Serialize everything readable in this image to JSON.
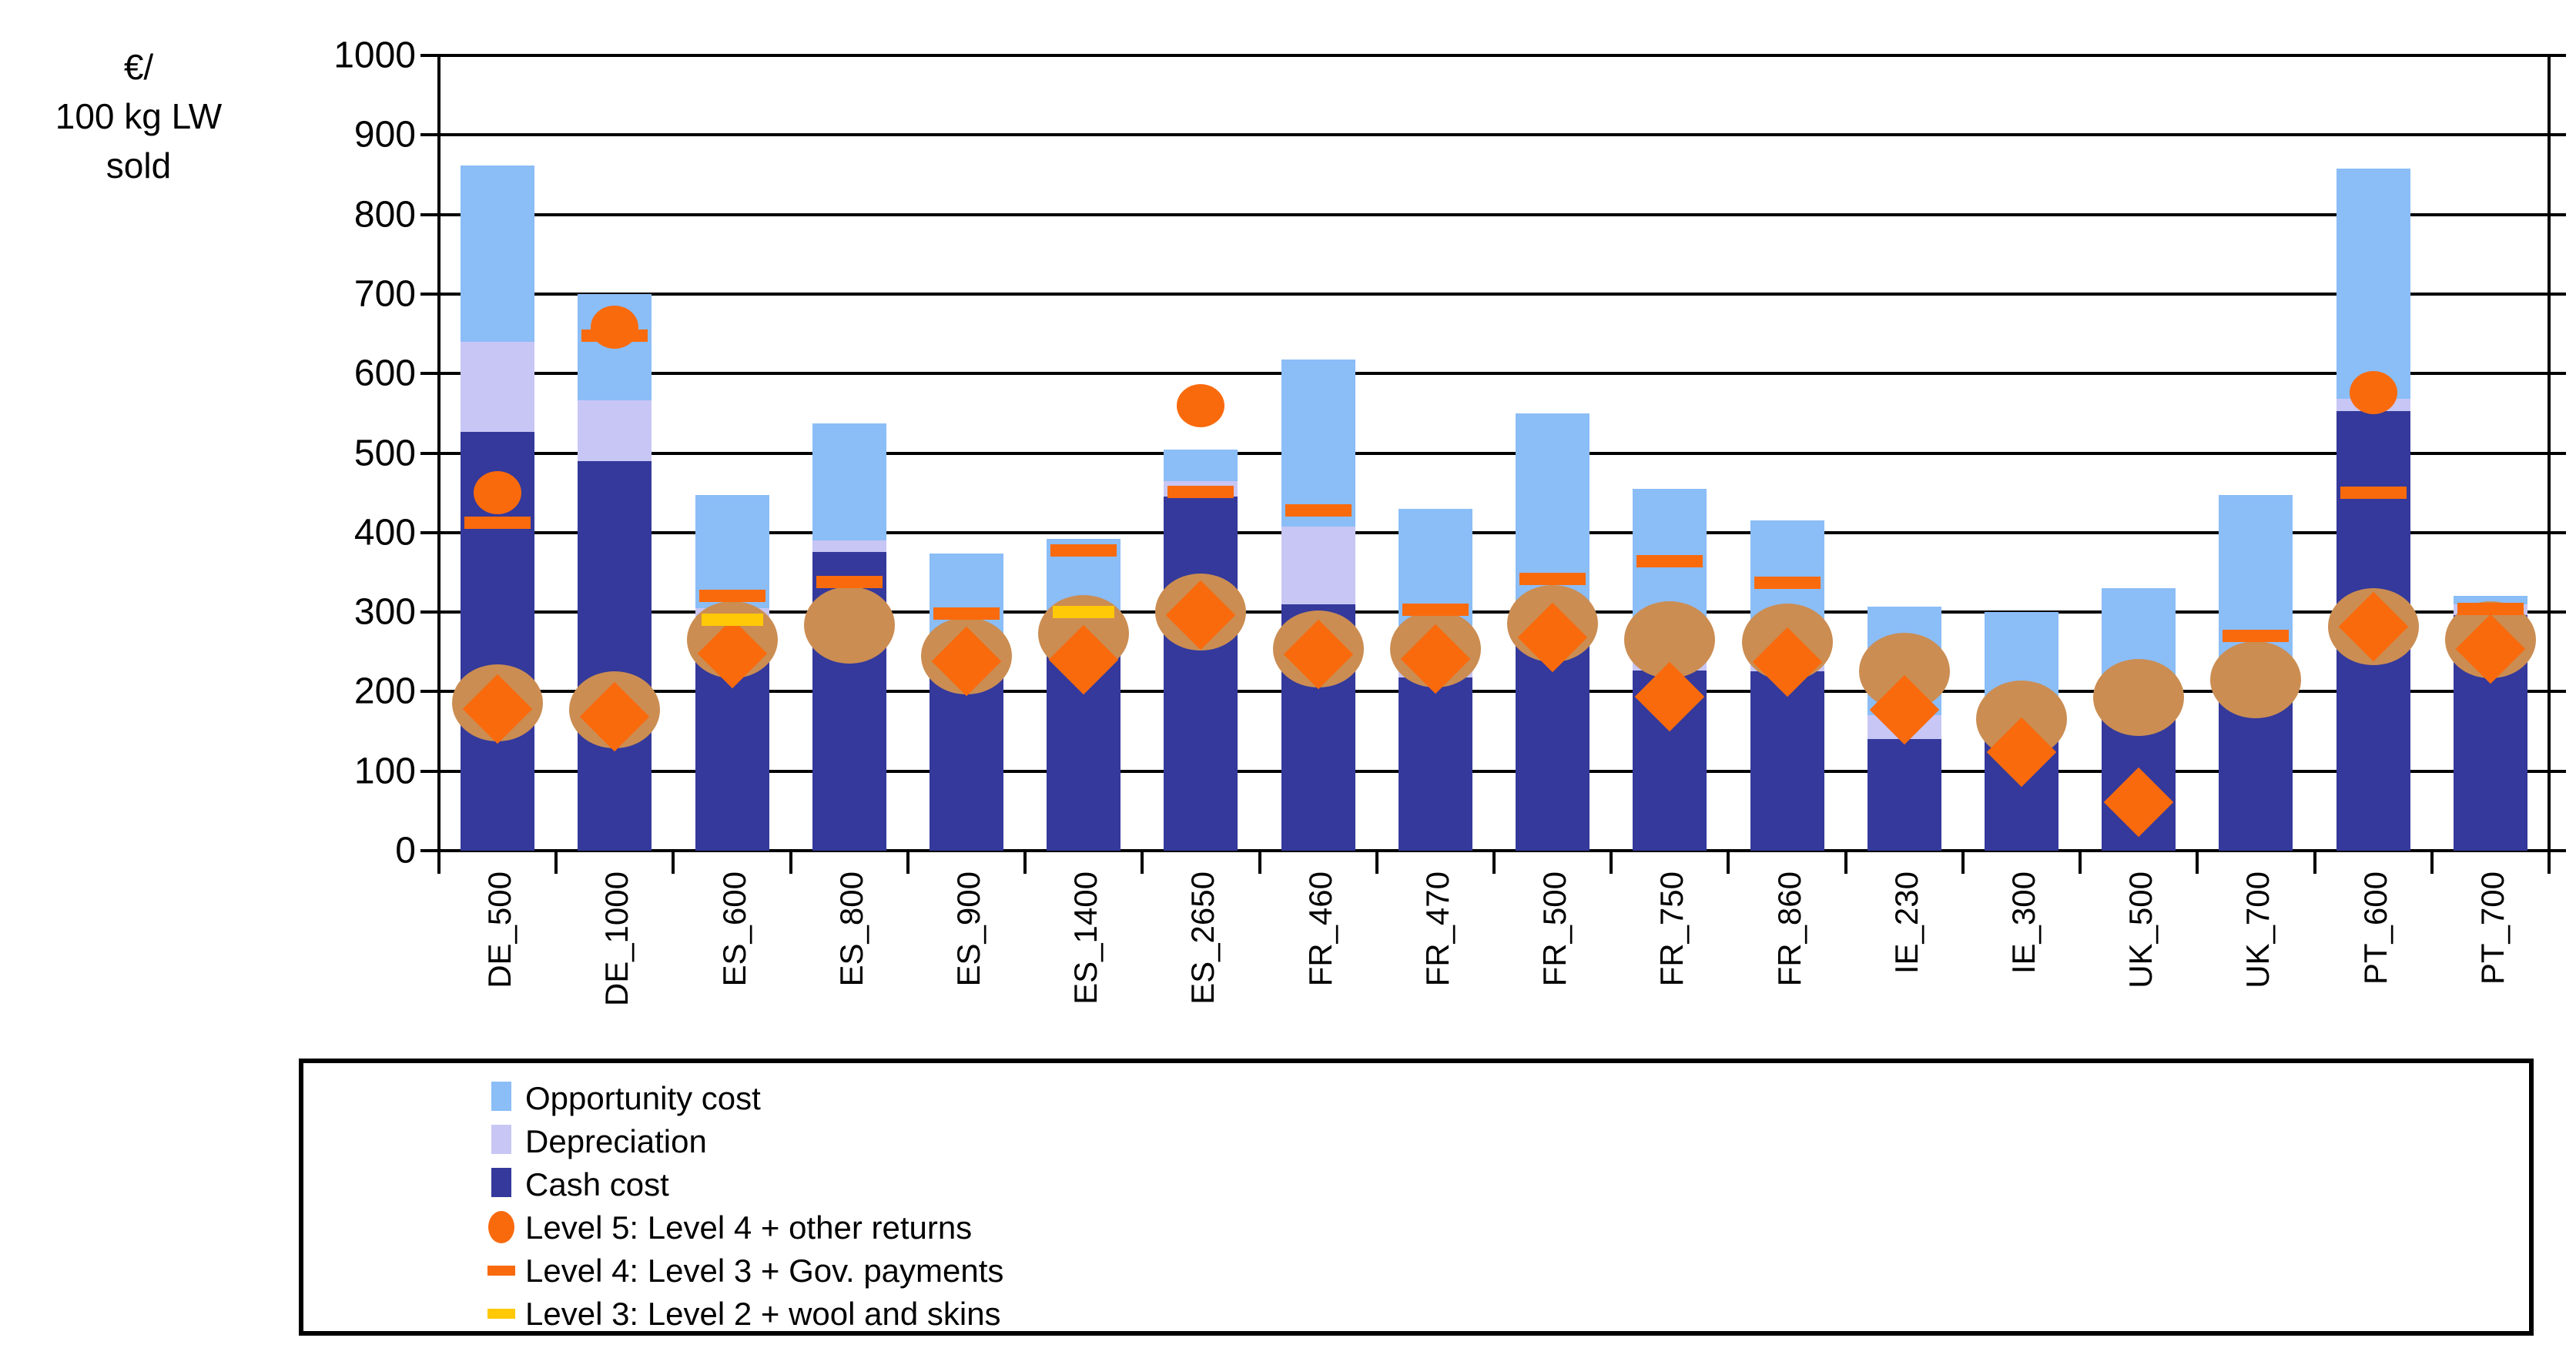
{
  "colors": {
    "opportunity": "#8BBDF7",
    "depreciation": "#C8C6F5",
    "cash": "#34399B",
    "marker_orange": "#F96A0D",
    "marker_yellow": "#FFC907",
    "marker_tan": "#CB8D52",
    "axis": "#000000",
    "background": "#FFFFFF"
  },
  "legend": {
    "items": [
      {
        "label": "Opportunity cost",
        "swatch": "bar",
        "color": "opportunity"
      },
      {
        "label": "Depreciation",
        "swatch": "bar",
        "color": "depreciation"
      },
      {
        "label": "Cash cost",
        "swatch": "bar",
        "color": "cash"
      },
      {
        "label": "Level 5: Level 4 + other returns",
        "swatch": "circle",
        "color": "marker_orange"
      },
      {
        "label": "Level 4: Level 3 + Gov. payments",
        "swatch": "dash",
        "color": "marker_orange"
      },
      {
        "label": "Level 3: Level 2 + wool and skins",
        "swatch": "dash",
        "color": "marker_yellow"
      }
    ]
  },
  "chart_data": {
    "type": "bar",
    "stacked": true,
    "title": "",
    "xlabel": "",
    "ylabel_lines": [
      "€/",
      "100 kg LW",
      "sold"
    ],
    "ylim": [
      0,
      1000
    ],
    "y_ticks": [
      0,
      100,
      200,
      300,
      400,
      500,
      600,
      700,
      800,
      900,
      1000
    ],
    "grid": true,
    "legend_position": "bottom",
    "categories": [
      "DE_500",
      "DE_1000",
      "ES_600",
      "ES_800",
      "ES_900",
      "ES_1400",
      "ES_2650",
      "FR_460",
      "FR_470",
      "FR_500",
      "FR_750",
      "FR_860",
      "IE_230",
      "IE_300",
      "UK_500",
      "UK_700",
      "PT_600",
      "PT_700"
    ],
    "series": [
      {
        "name": "Cash cost",
        "type": "bar-segment",
        "color": "cash",
        "values": [
          527,
          490,
          287,
          376,
          255,
          275,
          445,
          310,
          218,
          272,
          227,
          226,
          140,
          155,
          180,
          188,
          553,
          296
        ]
      },
      {
        "name": "Depreciation",
        "type": "bar-segment",
        "color": "depreciation",
        "values": [
          113,
          76,
          18,
          14,
          13,
          8,
          20,
          98,
          46,
          36,
          55,
          61,
          30,
          19,
          28,
          36,
          15,
          14
        ]
      },
      {
        "name": "Opportunity cost",
        "type": "bar-segment",
        "color": "opportunity",
        "values": [
          222,
          134,
          142,
          147,
          106,
          109,
          39,
          210,
          166,
          242,
          173,
          128,
          137,
          126,
          122,
          223,
          290,
          10
        ]
      },
      {
        "name": "Level 5: Level 4 + other returns",
        "type": "point-circle",
        "color": "marker_orange",
        "values": [
          450,
          658,
          null,
          null,
          null,
          null,
          560,
          null,
          null,
          null,
          null,
          null,
          null,
          null,
          null,
          null,
          576,
          null
        ]
      },
      {
        "name": "Level 4: Level 3 + Gov. payments",
        "type": "point-dash",
        "color": "marker_orange",
        "values": [
          412,
          648,
          320,
          338,
          298,
          378,
          451,
          428,
          303,
          342,
          364,
          337,
          null,
          null,
          null,
          270,
          450,
          304
        ]
      },
      {
        "name": "Level 3: Level 2 + wool and skins",
        "type": "point-dash",
        "color": "marker_yellow",
        "values": [
          null,
          null,
          290,
          null,
          null,
          300,
          null,
          null,
          null,
          null,
          null,
          null,
          null,
          null,
          null,
          null,
          null,
          null
        ]
      },
      {
        "name": "unlabeled diamond marker",
        "type": "point-diamond",
        "color": "marker_orange",
        "values": [
          178,
          168,
          248,
          null,
          238,
          240,
          296,
          247,
          241,
          268,
          194,
          237,
          177,
          124,
          61,
          null,
          282,
          254
        ]
      },
      {
        "name": "unlabeled tan circle marker",
        "type": "point-tan-circle",
        "color": "marker_tan",
        "values": [
          186,
          177,
          265,
          284,
          245,
          273,
          300,
          254,
          254,
          286,
          265,
          262,
          226,
          166,
          193,
          215,
          282,
          265
        ]
      }
    ]
  }
}
